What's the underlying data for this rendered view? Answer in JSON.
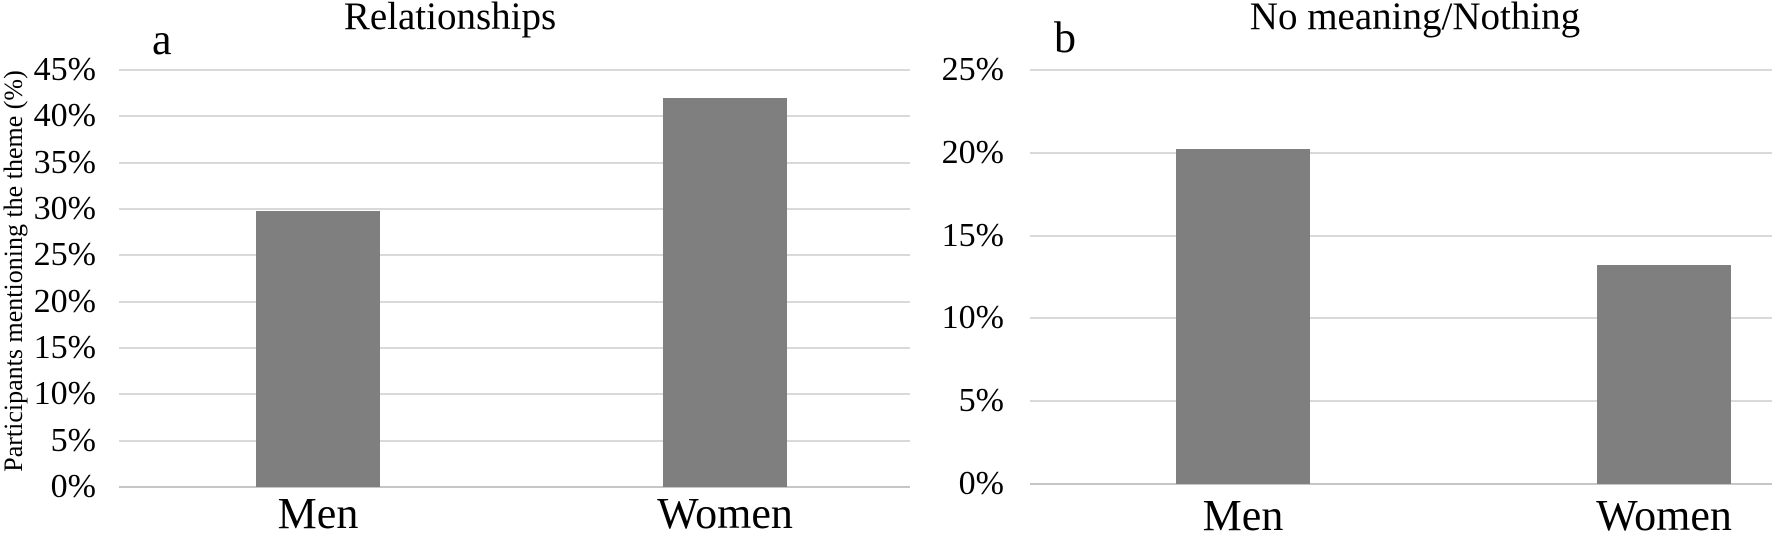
{
  "chart_data": [
    {
      "type": "bar",
      "panel_label": "a",
      "title": "Relationships",
      "categories": [
        "Men",
        "Women"
      ],
      "values": [
        29.8,
        42.0
      ],
      "xlabel": "",
      "ylabel": "Participants mentioning the theme (%)",
      "ylim": [
        0,
        45
      ],
      "ytick_values": [
        45,
        40,
        35,
        30,
        25,
        20,
        15,
        10,
        5,
        0
      ],
      "ytick_labels": [
        "45%",
        "40%",
        "35%",
        "30%",
        "25%",
        "20%",
        "15%",
        "10%",
        "5%",
        "0%"
      ],
      "grid": true,
      "legend": "none",
      "bar_color": "#7F7F7F"
    },
    {
      "type": "bar",
      "panel_label": "b",
      "title": "No meaning/Nothing",
      "categories": [
        "Men",
        "Women"
      ],
      "values": [
        20.2,
        13.2
      ],
      "xlabel": "",
      "ylabel": "",
      "ylim": [
        0,
        25
      ],
      "ytick_values": [
        25,
        20,
        15,
        10,
        5,
        0
      ],
      "ytick_labels": [
        "25%",
        "20%",
        "15%",
        "10%",
        "5%",
        "0%"
      ],
      "grid": true,
      "legend": "none",
      "bar_color": "#7F7F7F"
    }
  ],
  "colors": {
    "bar": "#7F7F7F",
    "gridline": "#D9D9D9",
    "axis_line": "#C6C6C6",
    "text": "#000000",
    "background": "#FFFFFF"
  }
}
